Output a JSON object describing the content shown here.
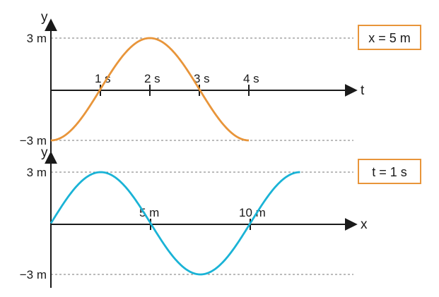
{
  "colors": {
    "wave_top": "#e8953a",
    "wave_bottom": "#1ab3d6",
    "box_border": "#e8953a",
    "axis": "#1a1a1a",
    "grid": "#777777"
  },
  "chart_data": [
    {
      "type": "line",
      "ylabel": "y",
      "xlabel": "t",
      "box_label": "x = 5 m",
      "ylim": [
        -3,
        3
      ],
      "xlim": [
        0,
        4
      ],
      "x_ticks": [
        1,
        2,
        3,
        4
      ],
      "x_tick_labels": [
        "1 s",
        "2 s",
        "3 s",
        "4 s"
      ],
      "y_tick_labels": [
        "3 m",
        "−3 m"
      ],
      "y_grid_dashed": [
        3,
        -3
      ],
      "series": [
        {
          "x": [
            0,
            0.25,
            0.5,
            0.75,
            1,
            1.25,
            1.5,
            1.75,
            2,
            2.25,
            2.5,
            2.75,
            3,
            3.25,
            3.5,
            3.75,
            4
          ],
          "values": [
            -3,
            -2.77,
            -2.12,
            -1.15,
            0,
            1.15,
            2.12,
            2.77,
            3,
            2.77,
            2.12,
            1.15,
            0,
            -1.15,
            -2.12,
            -2.77,
            -3
          ]
        }
      ]
    },
    {
      "type": "line",
      "ylabel": "y",
      "xlabel": "x",
      "box_label": "t = 1 s",
      "ylim": [
        -3,
        3
      ],
      "xlim": [
        0,
        12.5
      ],
      "x_ticks": [
        5,
        10
      ],
      "x_tick_labels": [
        "5 m",
        "10 m"
      ],
      "y_tick_labels": [
        "3 m",
        "−3 m"
      ],
      "y_grid_dashed": [
        3,
        -3
      ],
      "series": [
        {
          "x": [
            0,
            0.625,
            1.25,
            1.875,
            2.5,
            3.125,
            3.75,
            4.375,
            5,
            5.625,
            6.25,
            6.875,
            7.5,
            8.125,
            8.75,
            9.375,
            10,
            10.625,
            11.25,
            11.875,
            12.5
          ],
          "values": [
            0,
            1.15,
            2.12,
            2.77,
            3,
            2.77,
            2.12,
            1.15,
            0,
            -1.15,
            -2.12,
            -2.77,
            -3,
            -2.77,
            -2.12,
            -1.15,
            0,
            1.15,
            2.12,
            2.77,
            3
          ]
        }
      ]
    }
  ]
}
